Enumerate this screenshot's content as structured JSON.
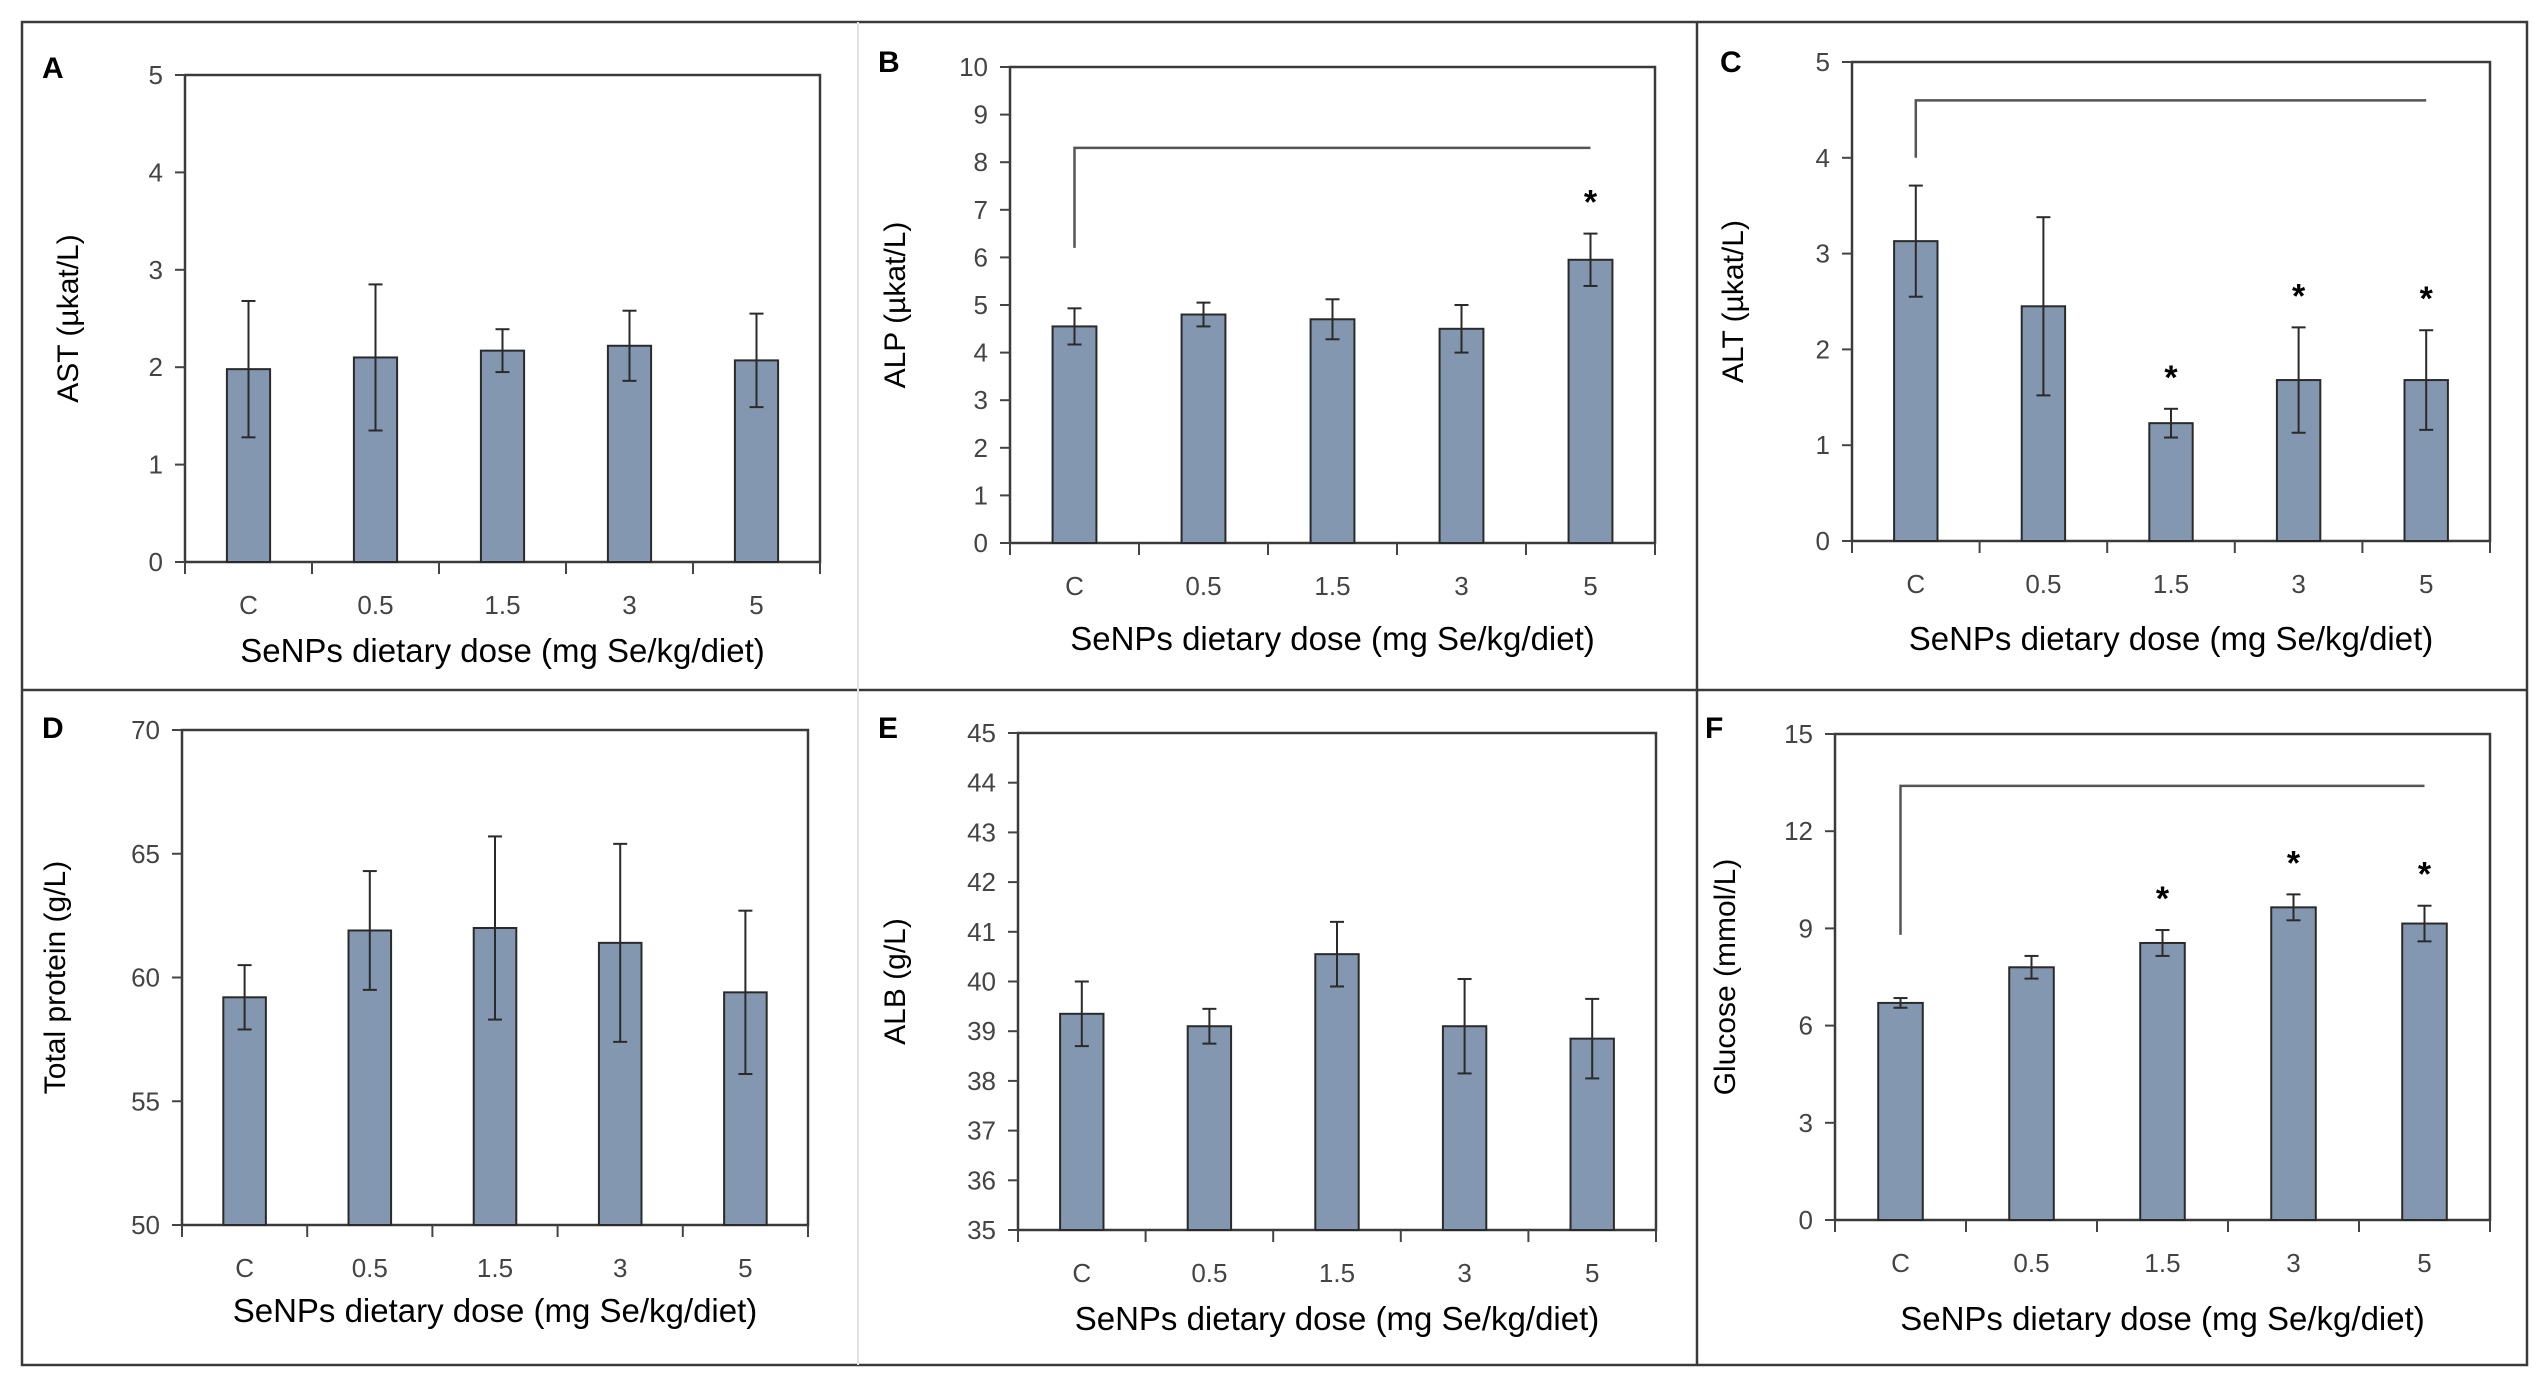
{
  "colors": {
    "bar": "#8497b0",
    "bar_edge": "#2a2a2a",
    "frame": "#3a3a3a",
    "axis": "#444444"
  },
  "chart_data": [
    {
      "panel": "A",
      "type": "bar",
      "categories": [
        "C",
        "0.5",
        "1.5",
        "3",
        "5"
      ],
      "values": [
        1.98,
        2.1,
        2.17,
        2.22,
        2.07
      ],
      "errors": [
        0.7,
        0.75,
        0.22,
        0.36,
        0.48
      ],
      "ylabel": "AST (µkat/L)",
      "xlabel": "SeNPs dietary dose (mg Se/kg/diet)",
      "ylim": [
        0,
        5
      ],
      "yticks": [
        "0",
        "1",
        "2",
        "3",
        "4",
        "5"
      ],
      "significance": [],
      "bracket": null
    },
    {
      "panel": "B",
      "type": "bar",
      "categories": [
        "C",
        "0.5",
        "1.5",
        "3",
        "5"
      ],
      "values": [
        4.55,
        4.8,
        4.7,
        4.5,
        5.95
      ],
      "errors": [
        0.38,
        0.25,
        0.42,
        0.5,
        0.55
      ],
      "ylabel": "ALP (µkat/L)",
      "xlabel": "SeNPs dietary dose (mg Se/kg/diet)",
      "ylim": [
        0,
        10
      ],
      "yticks": [
        "0",
        "1",
        "2",
        "3",
        "4",
        "5",
        "6",
        "7",
        "8",
        "9",
        "10"
      ],
      "significance": [
        "",
        "",
        "",
        "",
        "*"
      ],
      "bracket": {
        "level": 8.3,
        "drop_to": 6.2
      }
    },
    {
      "panel": "C",
      "type": "bar",
      "categories": [
        "C",
        "0.5",
        "1.5",
        "3",
        "5"
      ],
      "values": [
        3.13,
        2.45,
        1.23,
        1.68,
        1.68
      ],
      "errors": [
        0.58,
        0.93,
        0.15,
        0.55,
        0.52
      ],
      "ylabel": "ALT (µkat/L)",
      "xlabel": "SeNPs dietary dose (mg Se/kg/diet)",
      "ylim": [
        0,
        5
      ],
      "yticks": [
        "0",
        "1",
        "2",
        "3",
        "4",
        "5"
      ],
      "significance": [
        "",
        "",
        "*",
        "*",
        "*"
      ],
      "bracket": {
        "level": 4.6,
        "drop_to": 4.0
      }
    },
    {
      "panel": "D",
      "type": "bar",
      "categories": [
        "C",
        "0.5",
        "1.5",
        "3",
        "5"
      ],
      "values": [
        59.2,
        61.9,
        62.0,
        61.4,
        59.4
      ],
      "errors": [
        1.3,
        2.4,
        3.7,
        4.0,
        3.3
      ],
      "ylabel": "Total protein (g/L)",
      "xlabel": "SeNPs dietary dose (mg Se/kg/diet)",
      "ylim": [
        50,
        70
      ],
      "yticks": [
        "50",
        "55",
        "60",
        "65",
        "70"
      ],
      "significance": [],
      "bracket": null
    },
    {
      "panel": "E",
      "type": "bar",
      "categories": [
        "C",
        "0.5",
        "1.5",
        "3",
        "5"
      ],
      "values": [
        39.35,
        39.1,
        40.55,
        39.1,
        38.85
      ],
      "errors": [
        0.65,
        0.35,
        0.65,
        0.95,
        0.8
      ],
      "ylabel": "ALB (g/L)",
      "xlabel": "SeNPs dietary dose (mg Se/kg/diet)",
      "ylim": [
        35,
        45
      ],
      "yticks": [
        "35",
        "36",
        "37",
        "38",
        "39",
        "40",
        "41",
        "42",
        "43",
        "44",
        "45"
      ],
      "significance": [],
      "bracket": null
    },
    {
      "panel": "F",
      "type": "bar",
      "categories": [
        "C",
        "0.5",
        "1.5",
        "3",
        "5"
      ],
      "values": [
        6.7,
        7.8,
        8.55,
        9.65,
        9.15
      ],
      "errors": [
        0.15,
        0.35,
        0.4,
        0.4,
        0.55
      ],
      "ylabel": "Glucose (mmol/L)",
      "xlabel": "SeNPs dietary dose (mg Se/kg/diet)",
      "ylim": [
        0,
        15
      ],
      "yticks": [
        "0",
        "3",
        "6",
        "9",
        "12",
        "15"
      ],
      "significance": [
        "",
        "",
        "*",
        "*",
        "*"
      ],
      "bracket": {
        "level": 13.4,
        "drop_to": 8.8
      }
    }
  ]
}
